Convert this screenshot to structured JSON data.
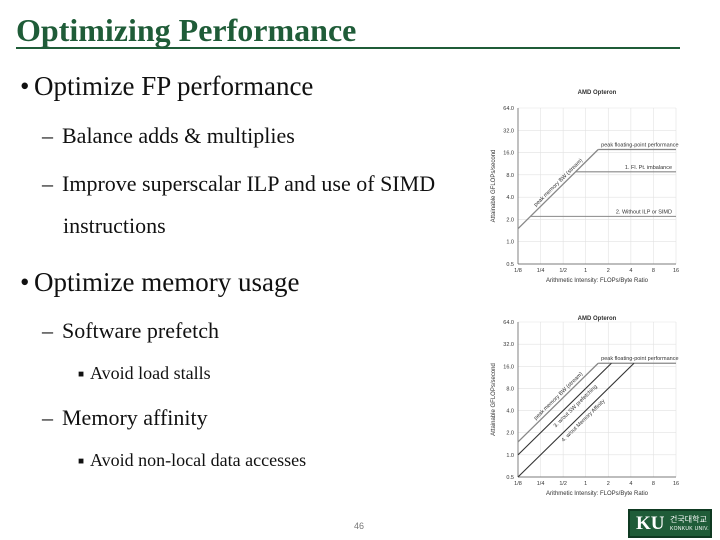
{
  "slide": {
    "title": "Optimizing Performance",
    "bullets": [
      {
        "level": 1,
        "text": "Optimize FP performance"
      },
      {
        "level": 2,
        "text": "Balance adds & multiplies"
      },
      {
        "level": 2,
        "text": "Improve superscalar ILP and use of SIMD"
      },
      {
        "level": 2,
        "text": "instructions",
        "continuation": true
      },
      {
        "level": 1,
        "text": "Optimize memory usage"
      },
      {
        "level": 2,
        "text": "Software prefetch"
      },
      {
        "level": 3,
        "text": "Avoid load stalls"
      },
      {
        "level": 2,
        "text": "Memory affinity"
      },
      {
        "level": 3,
        "text": "Avoid non-local data accesses"
      }
    ],
    "page_number": "46",
    "logo": {
      "mark": "KU",
      "korean": "건국대학교",
      "english": "KONKUK UNIV."
    },
    "colors": {
      "brand_green": "#1f5c38",
      "roofline": "#888888",
      "memory_line": "#333333"
    }
  },
  "chart_data": [
    {
      "type": "line",
      "title": "AMD Opteron",
      "xlabel": "Arithmetic Intensity: FLOPs/Byte Ratio",
      "ylabel": "Attainable GFLOPs/second",
      "log_scale": true,
      "x_ticks": [
        "1/8",
        "1/4",
        "1/2",
        "1",
        "2",
        "4",
        "8",
        "16"
      ],
      "y_ticks": [
        "0.5",
        "1.0",
        "2.0",
        "4.0",
        "8.0",
        "16.0",
        "32.0",
        "64.0"
      ],
      "x_tick_values": [
        0.125,
        0.25,
        0.5,
        1,
        2,
        4,
        8,
        16
      ],
      "y_tick_values": [
        0.5,
        1,
        2,
        4,
        8,
        16,
        32,
        64
      ],
      "xlim": [
        0.125,
        16
      ],
      "ylim": [
        0.5,
        64
      ],
      "grid": true,
      "roof": {
        "bandwidth_label": "peak memory BW (stream)",
        "bandwidth": 12,
        "peak": 17.6,
        "peak_label": "peak floating-point performance"
      },
      "ceilings": [
        {
          "label": "1. Fl. Pt. imbalance",
          "value": 8.8
        },
        {
          "label": "2. Without ILP or SIMD",
          "value": 2.2
        }
      ],
      "memory_ceilings": []
    },
    {
      "type": "line",
      "title": "AMD Opteron",
      "xlabel": "Arithmetic Intensity: FLOPs/Byte Ratio",
      "ylabel": "Attainable GFLOPs/second",
      "log_scale": true,
      "x_ticks": [
        "1/8",
        "1/4",
        "1/2",
        "1",
        "2",
        "4",
        "8",
        "16"
      ],
      "y_ticks": [
        "0.5",
        "1.0",
        "2.0",
        "4.0",
        "8.0",
        "16.0",
        "32.0",
        "64.0"
      ],
      "x_tick_values": [
        0.125,
        0.25,
        0.5,
        1,
        2,
        4,
        8,
        16
      ],
      "y_tick_values": [
        0.5,
        1,
        2,
        4,
        8,
        16,
        32,
        64
      ],
      "xlim": [
        0.125,
        16
      ],
      "ylim": [
        0.5,
        64
      ],
      "grid": true,
      "roof": {
        "bandwidth_label": "peak memory BW (stream)",
        "bandwidth": 12,
        "peak": 17.6,
        "peak_label": "peak floating-point performance"
      },
      "ceilings": [],
      "memory_ceilings": [
        {
          "label": "3. w/out SW prefetching",
          "bandwidth": 8
        },
        {
          "label": "4. w/out Memory Affinity",
          "bandwidth": 4
        }
      ]
    }
  ]
}
